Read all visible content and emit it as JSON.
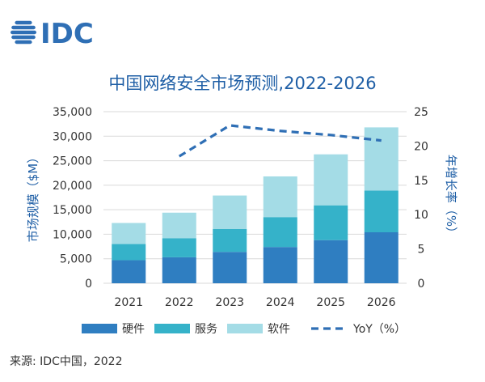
{
  "logo": {
    "text": "IDC"
  },
  "colors": {
    "hardware": "#2F7EC1",
    "services": "#35B2C9",
    "software": "#A4DCE6",
    "yoy": "#2F6FB5",
    "title": "#1F5FA6",
    "axis": "#333333",
    "grid": "#D9D9D9",
    "logo": "#2F6FB5"
  },
  "source": "来源: IDC中国，2022",
  "chart_data": {
    "type": "bar",
    "stacked": true,
    "title": "中国网络安全市场预测,2022-2026",
    "categories": [
      "2021",
      "2022",
      "2023",
      "2024",
      "2025",
      "2026"
    ],
    "ylabel": "市场规模（$M）",
    "y2label": "年增长率（%）",
    "ylim": [
      0,
      35000
    ],
    "y2lim": [
      0,
      25
    ],
    "yticks": [
      "0",
      "5,000",
      "10,000",
      "15,000",
      "20,000",
      "25,000",
      "30,000",
      "35,000"
    ],
    "y2ticks": [
      "0",
      "5",
      "10",
      "15",
      "20",
      "25"
    ],
    "series": [
      {
        "name": "硬件",
        "type": "bar",
        "values": [
          4700,
          5300,
          6400,
          7400,
          8800,
          10400
        ]
      },
      {
        "name": "服务",
        "type": "bar",
        "values": [
          3300,
          3900,
          4700,
          6100,
          7100,
          8500
        ]
      },
      {
        "name": "软件",
        "type": "bar",
        "values": [
          4300,
          5200,
          6800,
          8300,
          10400,
          12900
        ]
      },
      {
        "name": "YoY（%）",
        "type": "line",
        "axis": "right",
        "values": [
          null,
          18.5,
          23,
          22.2,
          21.6,
          20.8
        ]
      }
    ],
    "legend_position": "bottom",
    "grid": true
  }
}
